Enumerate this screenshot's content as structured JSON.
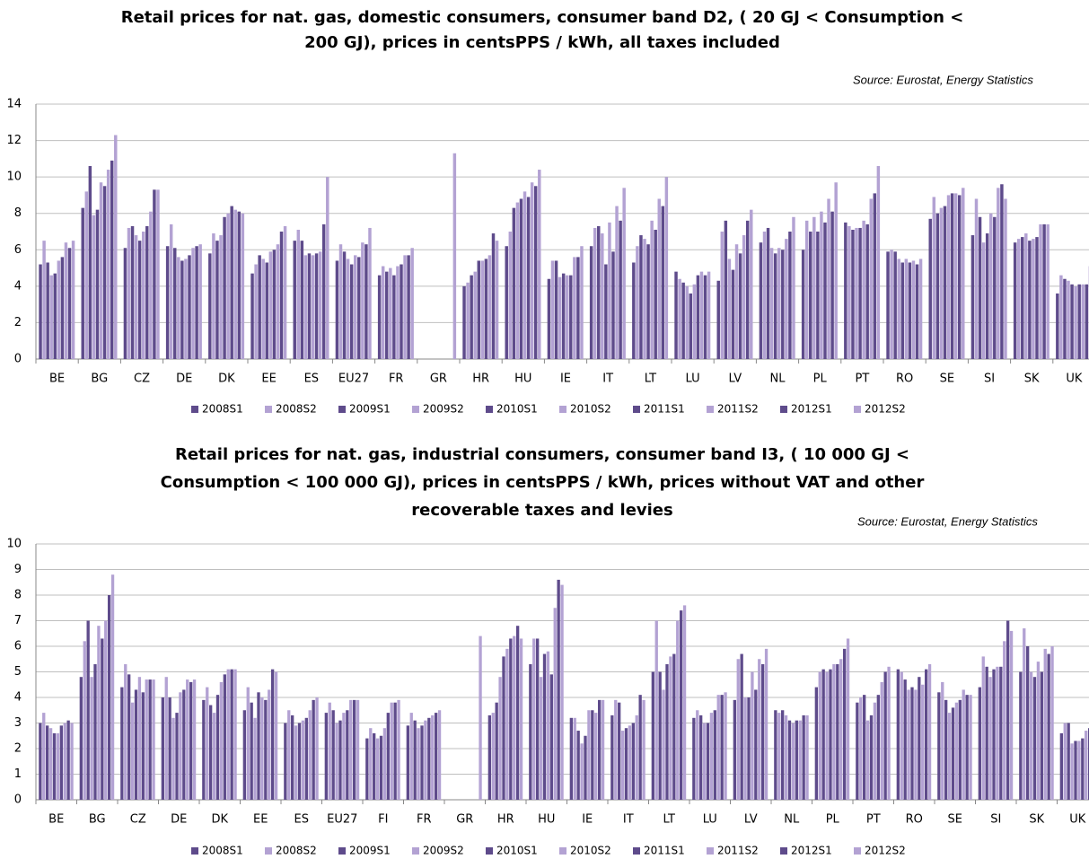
{
  "chart_data": [
    {
      "type": "bar",
      "title": [
        "Retail prices for nat. gas,  domestic consumers, consumer band D2, ( 20 GJ < Consumption <",
        "200 GJ), prices in centsPPS / kWh, all taxes included"
      ],
      "source": "Source: Eurostat, Energy Statistics",
      "categories": [
        "BE",
        "BG",
        "CZ",
        "DE",
        "DK",
        "EE",
        "ES",
        "EU27",
        "FR",
        "GR",
        "HR",
        "HU",
        "IE",
        "IT",
        "LT",
        "LU",
        "LV",
        "NL",
        "PL",
        "PT",
        "RO",
        "SE",
        "SI",
        "SK",
        "UK"
      ],
      "ylim": [
        0,
        14
      ],
      "yticks": [
        0,
        2,
        4,
        6,
        8,
        10,
        12,
        14
      ],
      "grid": true,
      "series": [
        {
          "name": "2008S1",
          "color": "#5e4b8b",
          "values": [
            5.2,
            8.3,
            6.1,
            6.2,
            5.8,
            4.7,
            6.5,
            5.4,
            4.6,
            null,
            4.0,
            6.2,
            4.4,
            6.2,
            5.3,
            4.8,
            4.3,
            6.4,
            6.0,
            7.5,
            5.9,
            7.7,
            6.8,
            6.4,
            3.6
          ]
        },
        {
          "name": "2008S2",
          "color": "#b3a2d3",
          "values": [
            6.5,
            9.2,
            7.2,
            7.4,
            6.9,
            5.2,
            7.1,
            6.3,
            5.1,
            null,
            4.2,
            7.0,
            5.4,
            7.2,
            6.2,
            4.4,
            7.0,
            7.0,
            7.6,
            7.3,
            6.0,
            8.9,
            8.8,
            6.6,
            4.6
          ]
        },
        {
          "name": "2009S1",
          "color": "#5e4b8b",
          "values": [
            5.3,
            10.6,
            7.3,
            6.1,
            6.5,
            5.7,
            6.5,
            5.9,
            4.8,
            null,
            4.6,
            8.3,
            5.4,
            7.3,
            6.8,
            4.2,
            7.6,
            7.2,
            7.0,
            7.1,
            5.9,
            8.0,
            7.8,
            6.7,
            4.4
          ]
        },
        {
          "name": "2009S2",
          "color": "#b3a2d3",
          "values": [
            4.6,
            7.9,
            6.8,
            5.6,
            6.8,
            5.5,
            5.7,
            5.5,
            5.0,
            null,
            4.8,
            8.6,
            4.5,
            6.9,
            6.6,
            4.0,
            5.5,
            6.1,
            7.8,
            7.2,
            5.5,
            8.3,
            6.4,
            6.9,
            4.3
          ]
        },
        {
          "name": "2010S1",
          "color": "#5e4b8b",
          "values": [
            4.7,
            8.2,
            6.5,
            5.4,
            7.8,
            5.3,
            5.8,
            5.2,
            4.6,
            null,
            5.4,
            8.8,
            4.7,
            5.2,
            6.3,
            3.6,
            4.9,
            5.8,
            7.0,
            7.2,
            5.3,
            8.4,
            6.9,
            6.5,
            4.1
          ]
        },
        {
          "name": "2010S2",
          "color": "#b3a2d3",
          "values": [
            5.4,
            9.7,
            7.0,
            5.5,
            8.0,
            5.9,
            5.7,
            5.7,
            5.1,
            null,
            5.4,
            9.2,
            4.6,
            7.5,
            7.6,
            4.1,
            6.3,
            6.1,
            8.1,
            7.6,
            5.5,
            9.0,
            8.0,
            6.6,
            4.0
          ]
        },
        {
          "name": "2011S1",
          "color": "#5e4b8b",
          "values": [
            5.6,
            9.5,
            7.3,
            5.7,
            8.4,
            6.0,
            5.8,
            5.6,
            5.2,
            null,
            5.5,
            8.9,
            4.6,
            5.9,
            7.1,
            4.6,
            5.8,
            6.0,
            7.5,
            7.4,
            5.3,
            9.1,
            7.8,
            6.7,
            4.1
          ]
        },
        {
          "name": "2011S2",
          "color": "#b3a2d3",
          "values": [
            6.4,
            10.4,
            8.1,
            6.1,
            8.2,
            6.3,
            5.9,
            6.4,
            5.7,
            null,
            5.7,
            9.7,
            5.6,
            8.4,
            8.8,
            4.8,
            6.8,
            6.6,
            8.8,
            8.8,
            5.4,
            9.1,
            9.4,
            7.4,
            4.1
          ]
        },
        {
          "name": "2012S1",
          "color": "#5e4b8b",
          "values": [
            6.1,
            10.9,
            9.3,
            6.2,
            8.1,
            7.0,
            7.4,
            6.3,
            5.7,
            null,
            6.9,
            9.5,
            5.6,
            7.6,
            8.4,
            4.6,
            7.6,
            7.0,
            8.1,
            9.1,
            5.2,
            9.0,
            9.6,
            7.4,
            4.1
          ]
        },
        {
          "name": "2012S2",
          "color": "#b3a2d3",
          "values": [
            6.5,
            12.3,
            9.3,
            6.3,
            8.0,
            7.3,
            10.0,
            7.2,
            6.1,
            11.3,
            6.5,
            10.4,
            6.2,
            9.4,
            10.0,
            4.8,
            8.2,
            7.8,
            9.7,
            10.6,
            5.5,
            9.4,
            8.8,
            7.4,
            5.1
          ]
        }
      ]
    },
    {
      "type": "bar",
      "title": [
        "Retail prices for nat. gas,  industrial consumers, consumer band I3, ( 10 000 GJ <",
        "Consumption < 100 000 GJ), prices in centsPPS / kWh, prices without VAT and other",
        "recoverable taxes and levies"
      ],
      "source": "Source: Eurostat, Energy Statistics",
      "categories": [
        "BE",
        "BG",
        "CZ",
        "DE",
        "DK",
        "EE",
        "ES",
        "EU27",
        "FI",
        "FR",
        "GR",
        "HR",
        "HU",
        "IE",
        "IT",
        "LT",
        "LU",
        "LV",
        "NL",
        "PL",
        "PT",
        "RO",
        "SE",
        "SI",
        "SK",
        "UK"
      ],
      "ylim": [
        0,
        10
      ],
      "yticks": [
        0,
        1,
        2,
        3,
        4,
        5,
        6,
        7,
        8,
        9,
        10
      ],
      "grid": true,
      "series": [
        {
          "name": "2008S1",
          "color": "#5e4b8b",
          "values": [
            3.0,
            4.8,
            4.4,
            4.0,
            3.9,
            3.5,
            3.0,
            3.4,
            2.4,
            2.9,
            null,
            3.3,
            5.3,
            3.2,
            3.3,
            5.0,
            3.2,
            3.9,
            3.5,
            4.4,
            3.8,
            5.1,
            4.2,
            4.4,
            5.0,
            2.6
          ]
        },
        {
          "name": "2008S2",
          "color": "#b3a2d3",
          "values": [
            3.4,
            6.2,
            5.3,
            4.8,
            4.4,
            4.4,
            3.5,
            3.8,
            2.8,
            3.4,
            null,
            3.4,
            6.3,
            3.2,
            3.9,
            7.0,
            3.5,
            5.5,
            3.4,
            5.0,
            4.0,
            5.0,
            4.6,
            5.6,
            6.7,
            3.0
          ]
        },
        {
          "name": "2009S1",
          "color": "#5e4b8b",
          "values": [
            2.9,
            7.0,
            4.9,
            4.0,
            3.7,
            3.8,
            3.3,
            3.5,
            2.6,
            3.1,
            null,
            3.8,
            6.3,
            2.7,
            3.8,
            5.0,
            3.3,
            5.7,
            3.5,
            5.1,
            4.1,
            4.7,
            3.9,
            5.2,
            6.0,
            3.0
          ]
        },
        {
          "name": "2009S2",
          "color": "#b3a2d3",
          "values": [
            2.8,
            4.8,
            3.8,
            3.2,
            3.4,
            3.2,
            2.9,
            3.0,
            2.4,
            2.8,
            null,
            4.8,
            4.8,
            2.2,
            2.7,
            4.3,
            3.0,
            4.0,
            3.3,
            5.0,
            3.1,
            4.3,
            3.4,
            4.8,
            5.0,
            2.2
          ]
        },
        {
          "name": "2010S1",
          "color": "#5e4b8b",
          "values": [
            2.6,
            5.3,
            4.3,
            3.4,
            4.1,
            4.2,
            3.0,
            3.1,
            2.5,
            2.9,
            null,
            5.6,
            5.7,
            2.5,
            2.8,
            5.3,
            3.0,
            4.0,
            3.1,
            5.1,
            3.3,
            4.4,
            3.6,
            5.1,
            4.8,
            2.3
          ]
        },
        {
          "name": "2010S2",
          "color": "#b3a2d3",
          "values": [
            2.6,
            6.8,
            4.8,
            4.2,
            4.6,
            4.0,
            3.1,
            3.4,
            2.8,
            3.1,
            null,
            5.9,
            5.8,
            3.5,
            2.9,
            5.6,
            3.4,
            5.0,
            3.0,
            5.3,
            3.8,
            4.3,
            3.8,
            5.2,
            5.4,
            2.3
          ]
        },
        {
          "name": "2011S1",
          "color": "#5e4b8b",
          "values": [
            2.9,
            6.3,
            4.2,
            4.3,
            4.9,
            3.9,
            3.2,
            3.5,
            3.4,
            3.2,
            null,
            6.3,
            4.9,
            3.5,
            3.0,
            5.7,
            3.5,
            4.3,
            3.1,
            5.3,
            4.1,
            4.8,
            3.9,
            5.2,
            5.0,
            2.4
          ]
        },
        {
          "name": "2011S2",
          "color": "#b3a2d3",
          "values": [
            3.0,
            7.0,
            4.7,
            4.7,
            5.1,
            4.3,
            3.5,
            3.9,
            3.8,
            3.3,
            null,
            6.4,
            7.5,
            3.4,
            3.3,
            7.0,
            4.1,
            5.5,
            3.1,
            5.5,
            4.6,
            4.5,
            4.3,
            6.2,
            5.9,
            2.7
          ]
        },
        {
          "name": "2012S1",
          "color": "#5e4b8b",
          "values": [
            3.1,
            8.0,
            4.7,
            4.6,
            5.1,
            5.1,
            3.9,
            3.9,
            3.8,
            3.4,
            null,
            6.8,
            8.6,
            3.9,
            4.1,
            7.4,
            4.1,
            5.3,
            3.3,
            5.9,
            5.0,
            5.1,
            4.1,
            7.0,
            5.7,
            2.8
          ]
        },
        {
          "name": "2012S2",
          "color": "#b3a2d3",
          "values": [
            3.0,
            8.8,
            4.7,
            4.7,
            5.1,
            5.0,
            4.0,
            3.9,
            3.9,
            3.5,
            6.4,
            6.3,
            8.4,
            3.9,
            3.9,
            7.6,
            4.2,
            5.9,
            3.3,
            6.3,
            5.2,
            5.3,
            4.1,
            6.6,
            6.0,
            3.0
          ]
        }
      ]
    }
  ]
}
